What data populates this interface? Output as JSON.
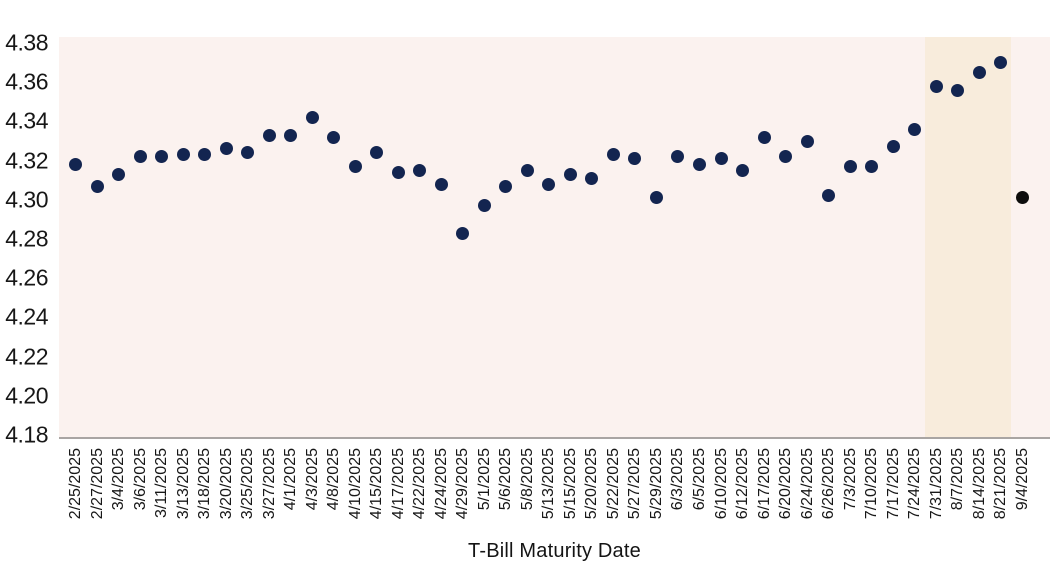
{
  "chart_data": {
    "type": "scatter",
    "title": "",
    "xlabel": "T-Bill Maturity Date",
    "ylabel": "",
    "ylim": [
      4.18,
      4.38
    ],
    "ytick_values": [
      4.38,
      4.36,
      4.34,
      4.32,
      4.3,
      4.28,
      4.26,
      4.24,
      4.22,
      4.2,
      4.18
    ],
    "ytick_decimals": 2,
    "grid": false,
    "legend_position": "none",
    "categories": [
      "2/25/2025",
      "2/27/2025",
      "3/4/2025",
      "3/6/2025",
      "3/11/2025",
      "3/13/2025",
      "3/18/2025",
      "3/20/2025",
      "3/25/2025",
      "3/27/2025",
      "4/1/2025",
      "4/3/2025",
      "4/8/2025",
      "4/10/2025",
      "4/15/2025",
      "4/17/2025",
      "4/22/2025",
      "4/24/2025",
      "4/29/2025",
      "5/1/2025",
      "5/6/2025",
      "5/8/2025",
      "5/13/2025",
      "5/15/2025",
      "5/20/2025",
      "5/22/2025",
      "5/27/2025",
      "5/29/2025",
      "6/3/2025",
      "6/5/2025",
      "6/10/2025",
      "6/12/2025",
      "6/17/2025",
      "6/20/2025",
      "6/24/2025",
      "6/26/2025",
      "7/3/2025",
      "7/10/2025",
      "7/17/2025",
      "7/24/2025",
      "7/31/2025",
      "8/7/2025",
      "8/14/2025",
      "8/21/2025",
      "9/4/2025"
    ],
    "values": [
      4.318,
      4.307,
      4.313,
      4.322,
      4.322,
      4.323,
      4.323,
      4.326,
      4.324,
      4.333,
      4.333,
      4.342,
      4.332,
      4.317,
      4.324,
      4.314,
      4.315,
      4.308,
      4.283,
      4.297,
      4.307,
      4.315,
      4.308,
      4.313,
      4.311,
      4.323,
      4.321,
      4.301,
      4.322,
      4.318,
      4.321,
      4.315,
      4.332,
      4.322,
      4.33,
      4.302,
      4.317,
      4.317,
      4.327,
      4.336,
      4.358,
      4.356,
      4.365,
      4.37,
      4.301
    ],
    "marker_color": "#132550",
    "final_point_category": "9/4/2025",
    "final_point_color": "#0d0d0d",
    "highlight_band": {
      "from_category": "7/31/2025",
      "to_category": "8/21/2025",
      "color": "#f8ecdc"
    },
    "plot_background": "#fbf2ef",
    "axis_line_color": "#a9a5a3"
  }
}
